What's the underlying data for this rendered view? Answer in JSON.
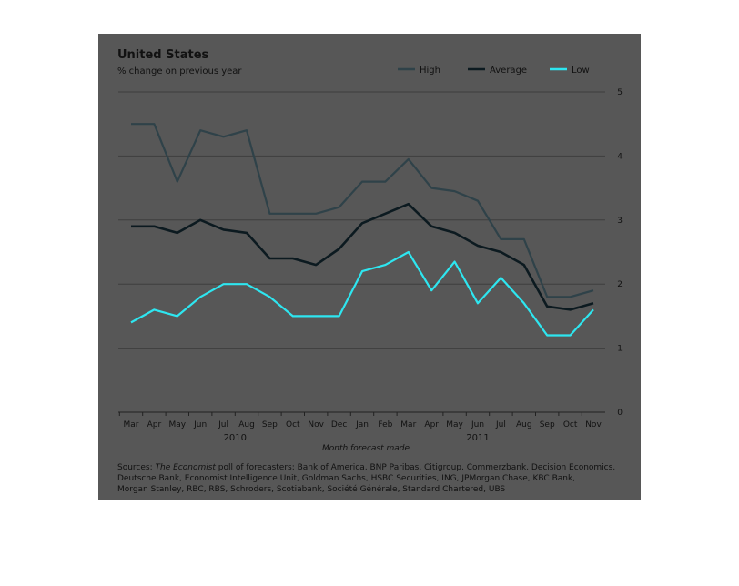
{
  "chart_data": {
    "type": "line",
    "title": "United States",
    "subtitle": "% change on previous year",
    "xlabel": "Month forecast made",
    "categories": [
      "Mar",
      "Apr",
      "May",
      "Jun",
      "Jul",
      "Aug",
      "Sep",
      "Oct",
      "Nov",
      "Dec",
      "Jan",
      "Feb",
      "Mar",
      "Apr",
      "May",
      "Jun",
      "Jul",
      "Aug",
      "Sep",
      "Oct",
      "Nov"
    ],
    "year_labels": [
      {
        "label": "2010",
        "from_index": 0,
        "to_index": 9
      },
      {
        "label": "2011",
        "from_index": 10,
        "to_index": 20
      }
    ],
    "ylim": [
      0,
      5
    ],
    "yticks": [
      0,
      1,
      2,
      3,
      4,
      5
    ],
    "grid": true,
    "legend_position": "top-right",
    "series": [
      {
        "name": "High",
        "color": "#2f4249",
        "values": [
          4.5,
          4.5,
          3.6,
          4.4,
          4.3,
          4.4,
          3.1,
          3.1,
          3.1,
          3.2,
          3.6,
          3.6,
          3.95,
          3.5,
          3.45,
          3.3,
          2.7,
          2.7,
          1.8,
          1.8,
          1.9
        ]
      },
      {
        "name": "Average",
        "color": "#0c1a20",
        "values": [
          2.9,
          2.9,
          2.8,
          3.0,
          2.85,
          2.8,
          2.4,
          2.4,
          2.3,
          2.55,
          2.95,
          3.1,
          3.25,
          2.9,
          2.8,
          2.6,
          2.5,
          2.3,
          1.65,
          1.6,
          1.7
        ]
      },
      {
        "name": "Low",
        "color": "#2ee6f0",
        "values": [
          1.4,
          1.6,
          1.5,
          1.8,
          2.0,
          2.0,
          1.8,
          1.5,
          1.5,
          1.5,
          2.2,
          2.3,
          2.5,
          1.9,
          2.35,
          1.7,
          2.1,
          1.7,
          1.2,
          1.2,
          1.6
        ]
      }
    ],
    "background_color": "#575757",
    "grid_color": "#3e3e3e"
  },
  "sources": {
    "lead": "Sources: ",
    "publication": "The Economist",
    "line1_rest": " poll of forecasters: Bank of America, BNP Paribas, Citigroup, Commerzbank, Decision Economics,",
    "line2": "Deutsche Bank, Economist Intelligence Unit, Goldman Sachs, HSBC Securities, ING, JPMorgan Chase, KBC Bank,",
    "line3": "Morgan Stanley, RBC, RBS, Schroders, Scotiabank, Société Générale, Standard Chartered, UBS"
  }
}
